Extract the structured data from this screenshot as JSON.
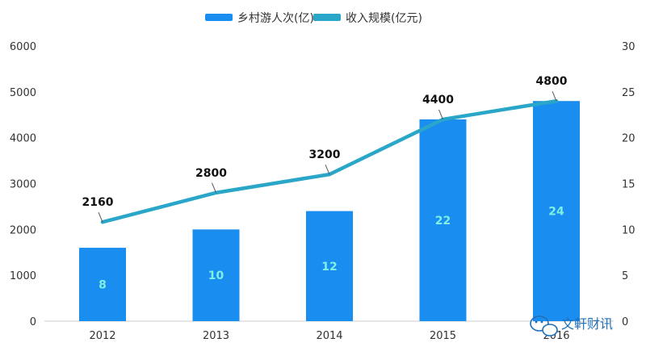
{
  "chart_data": {
    "type": "bar",
    "categories": [
      "2012",
      "2013",
      "2014",
      "2015",
      "2016"
    ],
    "series": [
      {
        "name": "乡村游人次(亿)",
        "chart_type": "bar",
        "axis": "right",
        "values": [
          8,
          10,
          12,
          22,
          24
        ],
        "color": "#1a8ef0",
        "labels": [
          "8",
          "10",
          "12",
          "22",
          "24"
        ]
      },
      {
        "name": "收入规模(亿元)",
        "chart_type": "line",
        "axis": "left",
        "values": [
          2160,
          2800,
          3200,
          4400,
          4800
        ],
        "color": "#2aa6c8",
        "labels": [
          "2160",
          "2800",
          "3200",
          "4400",
          "4800"
        ]
      }
    ],
    "y_left": {
      "min": 0,
      "max": 6000,
      "ticks": [
        "0",
        "1000",
        "2000",
        "3000",
        "4000",
        "5000",
        "6000"
      ]
    },
    "y_right": {
      "min": 0,
      "max": 30,
      "ticks": [
        "0",
        "5",
        "10",
        "15",
        "20",
        "25",
        "30"
      ]
    },
    "grid": false,
    "legend_position": "top-center",
    "title": "",
    "xlabel": "",
    "ylabel": ""
  },
  "watermark": {
    "text": "文軒财讯",
    "icon": "wechat-icon"
  }
}
